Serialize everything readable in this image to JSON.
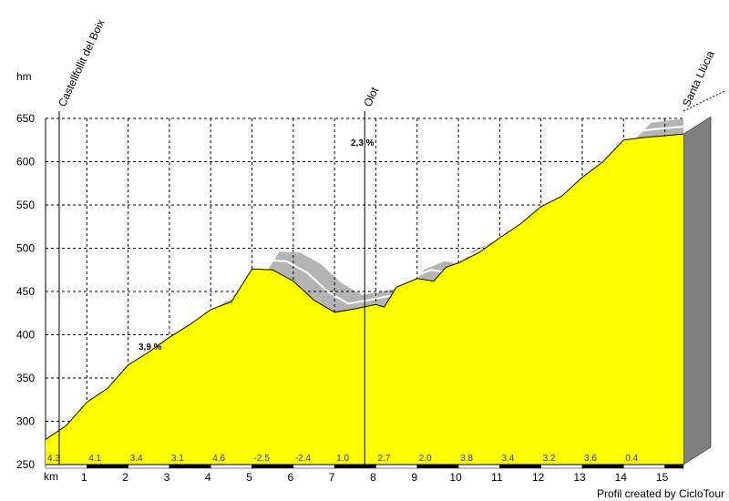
{
  "chart_data": {
    "type": "area",
    "y_axis_label": "hm",
    "x_axis_label": "km",
    "x": [
      0,
      0.5,
      1,
      1.5,
      2,
      2.5,
      3,
      3.5,
      4,
      4.5,
      5,
      5.5,
      6,
      6.5,
      7,
      7.5,
      8,
      8.2,
      8.5,
      9,
      9.4,
      9.7,
      10,
      10.5,
      11,
      11.5,
      12,
      12.5,
      13,
      13.5,
      14,
      14.5,
      15,
      15.45
    ],
    "values": [
      279,
      295,
      322,
      338,
      365,
      380,
      397,
      412,
      429,
      438,
      476,
      475,
      462,
      440,
      426,
      430,
      435,
      432,
      455,
      465,
      462,
      478,
      483,
      495,
      512,
      528,
      548,
      560,
      582,
      600,
      625,
      628,
      630,
      632
    ],
    "color": "#ffff00",
    "xlim": [
      0,
      15.45
    ],
    "ylim": [
      250,
      650
    ],
    "xticks": [
      1,
      2,
      3,
      4,
      5,
      6,
      7,
      8,
      9,
      10,
      11,
      12,
      13,
      14,
      15
    ],
    "yticks": [
      250,
      300,
      350,
      400,
      450,
      500,
      550,
      600,
      650
    ],
    "grid": true,
    "gradient_labels": [
      "4.3",
      "4.1",
      "3.4",
      "3.1",
      "4.6",
      "-2.5",
      "-2.4",
      "1.0",
      "2.7",
      "2.0",
      "3.8",
      "3.4",
      "3.2",
      "3.6",
      "0.4"
    ],
    "annotations": [
      "3,9 %",
      "2,3 %"
    ],
    "places": [
      {
        "name": "Castellfollit del Boix",
        "km": 0.33
      },
      {
        "name": "Olot",
        "km": 7.73
      },
      {
        "name": "Santa Llúcia",
        "km": 15.45
      }
    ],
    "credit": "Profil created by CicloTour"
  }
}
